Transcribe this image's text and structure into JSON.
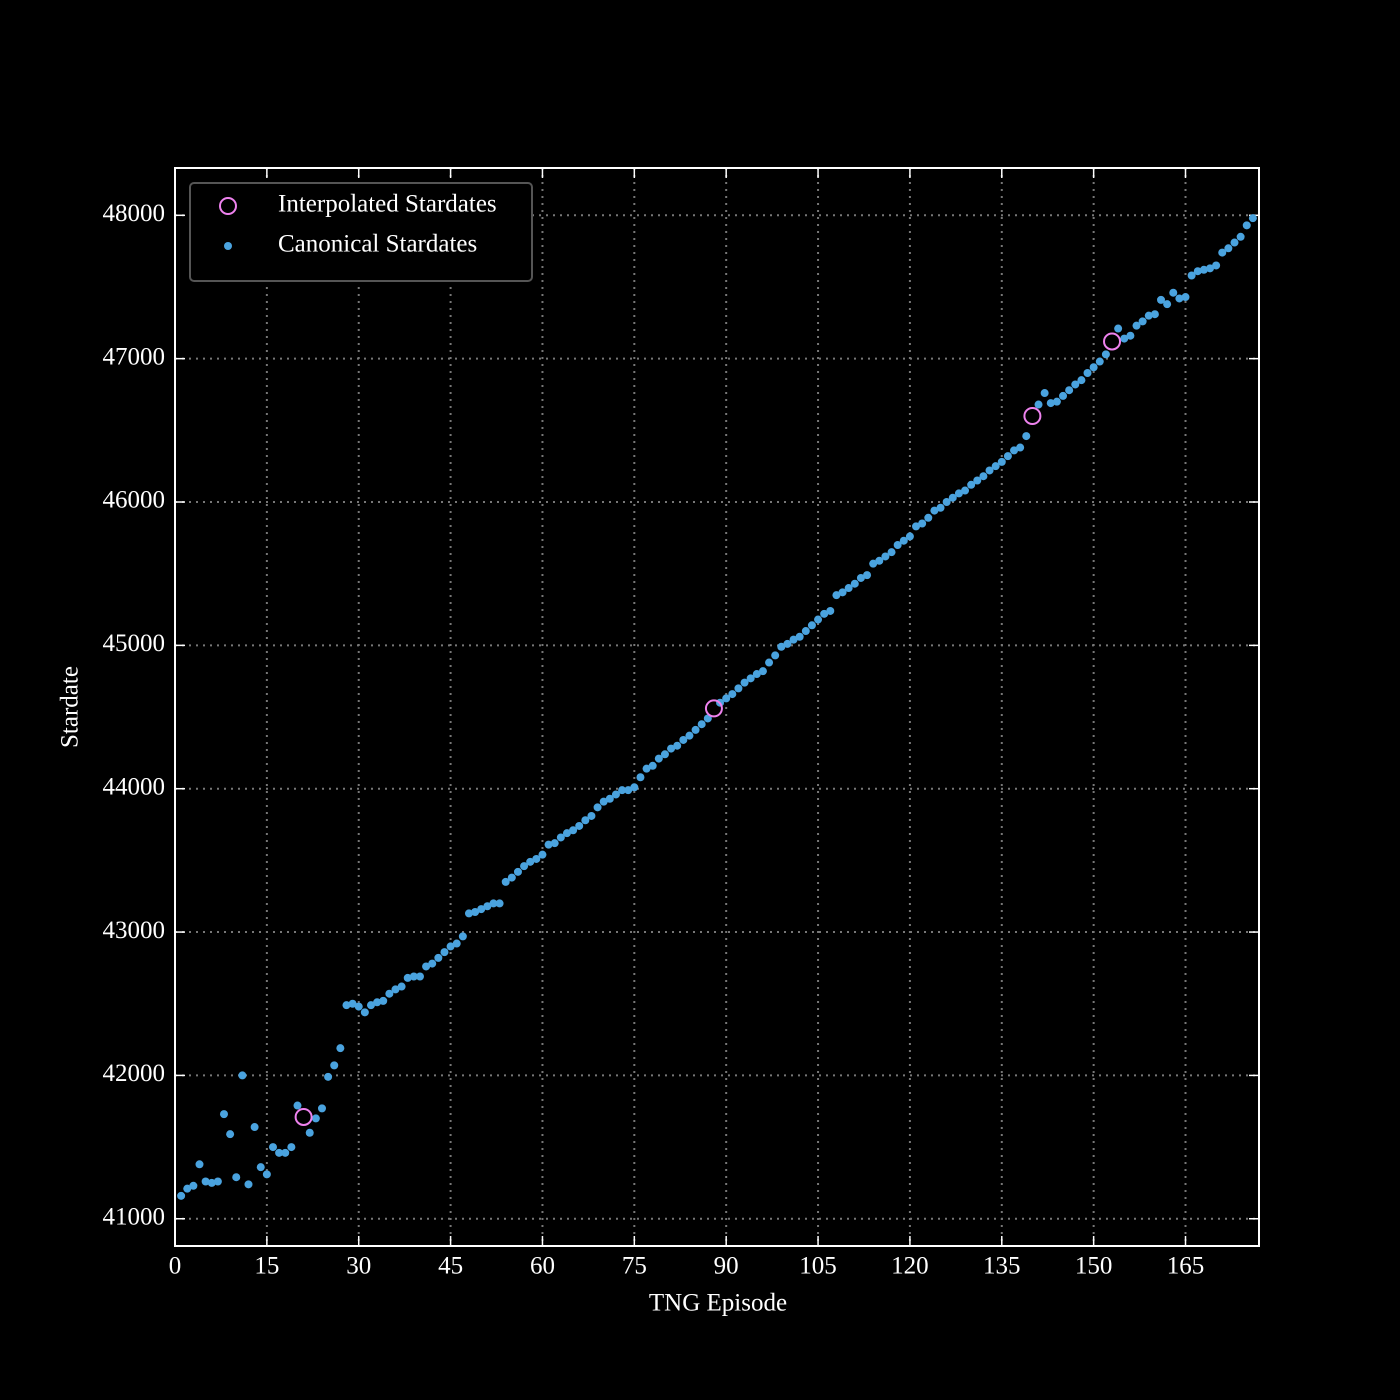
{
  "chart_data": {
    "type": "scatter",
    "xlabel": "TNG Episode",
    "ylabel": "Stardate",
    "xlim": [
      0,
      177
    ],
    "ylim": [
      40810,
      48330
    ],
    "xticks": [
      0,
      15,
      30,
      45,
      60,
      75,
      90,
      105,
      120,
      135,
      150,
      165
    ],
    "yticks": [
      41000,
      42000,
      43000,
      44000,
      45000,
      46000,
      47000,
      48000
    ],
    "grid": true,
    "legend": "upper left",
    "series": [
      {
        "name": "Interpolated Stardates",
        "color": "#ee82ee",
        "marker": "open",
        "x": [
          21,
          88,
          140,
          153
        ],
        "values": [
          41710,
          44560,
          46600,
          47120
        ]
      },
      {
        "name": "Canonical Stardates",
        "color": "#4aa3df",
        "marker": "dot",
        "x": [
          1,
          2,
          3,
          4,
          5,
          6,
          7,
          8,
          9,
          10,
          11,
          12,
          13,
          14,
          15,
          16,
          17,
          18,
          19,
          20,
          22,
          23,
          24,
          25,
          26,
          27,
          28,
          29,
          30,
          31,
          32,
          33,
          34,
          35,
          36,
          37,
          38,
          39,
          40,
          41,
          42,
          43,
          44,
          45,
          46,
          47,
          48,
          49,
          50,
          51,
          52,
          53,
          54,
          55,
          56,
          57,
          58,
          59,
          60,
          61,
          62,
          63,
          64,
          65,
          66,
          67,
          68,
          69,
          70,
          71,
          72,
          73,
          74,
          75,
          76,
          77,
          78,
          79,
          80,
          81,
          82,
          83,
          84,
          85,
          86,
          87,
          89,
          90,
          91,
          92,
          93,
          94,
          95,
          96,
          97,
          98,
          99,
          100,
          101,
          102,
          103,
          104,
          105,
          106,
          107,
          108,
          109,
          110,
          111,
          112,
          113,
          114,
          115,
          116,
          117,
          118,
          119,
          120,
          121,
          122,
          123,
          124,
          125,
          126,
          127,
          128,
          129,
          130,
          131,
          132,
          133,
          134,
          135,
          136,
          137,
          138,
          139,
          141,
          142,
          143,
          144,
          145,
          146,
          147,
          148,
          149,
          150,
          151,
          152,
          154,
          155,
          156,
          157,
          158,
          159,
          160,
          161,
          162,
          163,
          164,
          165,
          166,
          167,
          168,
          169,
          170,
          171,
          172,
          173,
          174,
          175,
          176
        ],
        "values": [
          41160,
          41210,
          41230,
          41380,
          41260,
          41250,
          41260,
          41730,
          41590,
          41290,
          42000,
          41240,
          41640,
          41360,
          41310,
          41500,
          41460,
          41460,
          41500,
          41790,
          41600,
          41700,
          41770,
          41990,
          42070,
          42190,
          42490,
          42500,
          42480,
          42440,
          42490,
          42510,
          42520,
          42570,
          42600,
          42620,
          42680,
          42690,
          42690,
          42760,
          42780,
          42820,
          42860,
          42900,
          42920,
          42970,
          43130,
          43140,
          43160,
          43180,
          43200,
          43200,
          43350,
          43380,
          43420,
          43460,
          43490,
          43510,
          43540,
          43610,
          43620,
          43660,
          43690,
          43710,
          43740,
          43780,
          43810,
          43870,
          43910,
          43930,
          43960,
          43990,
          43990,
          44010,
          44080,
          44140,
          44160,
          44210,
          44240,
          44280,
          44300,
          44340,
          44370,
          44410,
          44450,
          44490,
          44600,
          44630,
          44660,
          44700,
          44740,
          44770,
          44800,
          44820,
          44880,
          44930,
          44990,
          45010,
          45040,
          45060,
          45100,
          45140,
          45180,
          45220,
          45240,
          45350,
          45370,
          45400,
          45430,
          45470,
          45490,
          45570,
          45590,
          45620,
          45650,
          45700,
          45730,
          45760,
          45830,
          45850,
          45890,
          45940,
          45960,
          46000,
          46030,
          46060,
          46080,
          46120,
          46150,
          46180,
          46220,
          46250,
          46280,
          46320,
          46360,
          46380,
          46460,
          46680,
          46760,
          46690,
          46700,
          46740,
          46780,
          46820,
          46850,
          46900,
          46940,
          46980,
          47030,
          47210,
          47140,
          47160,
          47230,
          47260,
          47300,
          47310,
          47410,
          47380,
          47460,
          47420,
          47430,
          47580,
          47610,
          47620,
          47630,
          47650,
          47740,
          47770,
          47810,
          47850,
          47930,
          47980
        ]
      }
    ]
  }
}
